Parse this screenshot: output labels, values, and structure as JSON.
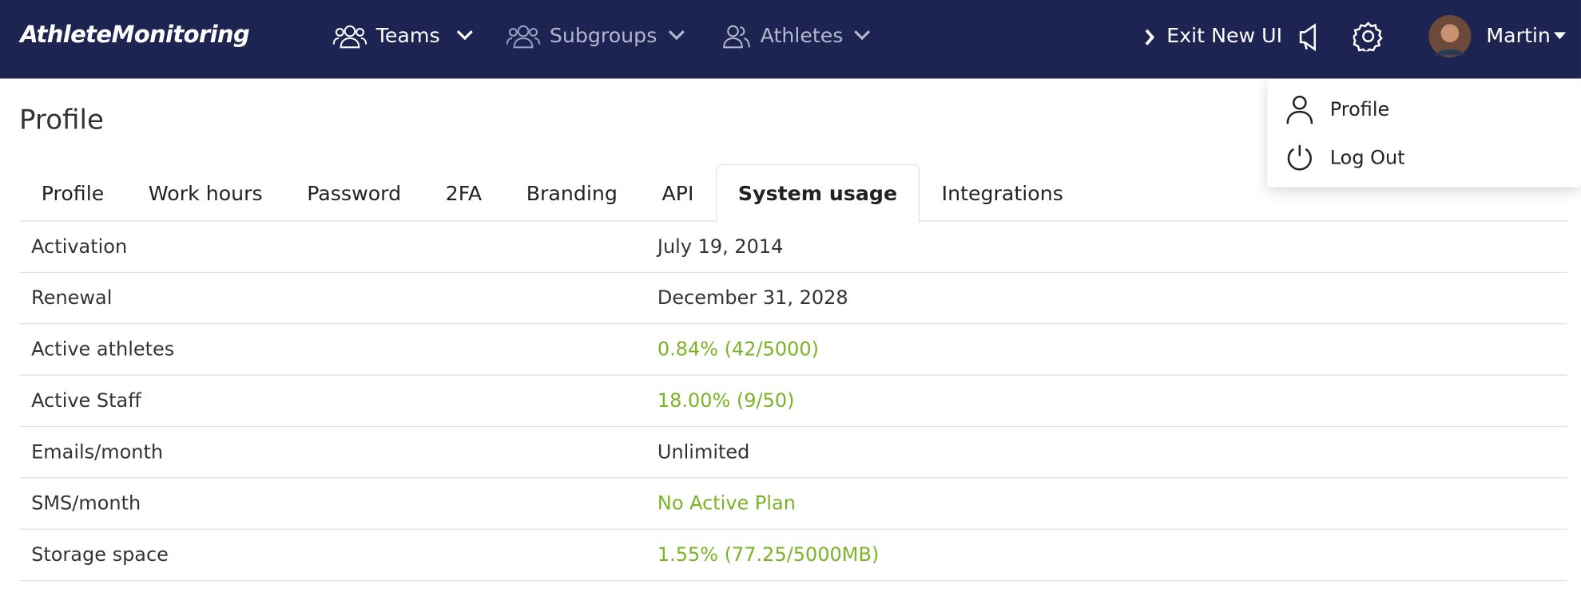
{
  "nav": {
    "brand": "AthleteMonitoring",
    "items": [
      "Teams",
      "Subgroups",
      "Athletes"
    ],
    "exit": "Exit New UI",
    "user": "Martin"
  },
  "dropdown": [
    "Profile",
    "Log Out"
  ],
  "page_title": "Profile",
  "tabs": [
    "Profile",
    "Work hours",
    "Password",
    "2FA",
    "Branding",
    "API",
    "System usage",
    "Integrations"
  ],
  "active_tab": 6,
  "table": {
    "rows": [
      [
        "Activation",
        "July 19, 2014"
      ],
      [
        "Renewal",
        "December 31, 2028"
      ],
      [
        "Active athletes",
        "0.84% (42/5000)"
      ],
      [
        "Active Staff",
        "18.00% (9/50)"
      ],
      [
        "Emails/month",
        "Unlimited"
      ],
      [
        "SMS/month",
        "No Active Plan"
      ],
      [
        "Storage space",
        "1.55% (77.25/5000MB)"
      ]
    ],
    "value_colors": [
      "#333333",
      "#333333",
      "#7ab326",
      "#7ab326",
      "#333333",
      "#7ab326",
      "#7ab326"
    ]
  }
}
